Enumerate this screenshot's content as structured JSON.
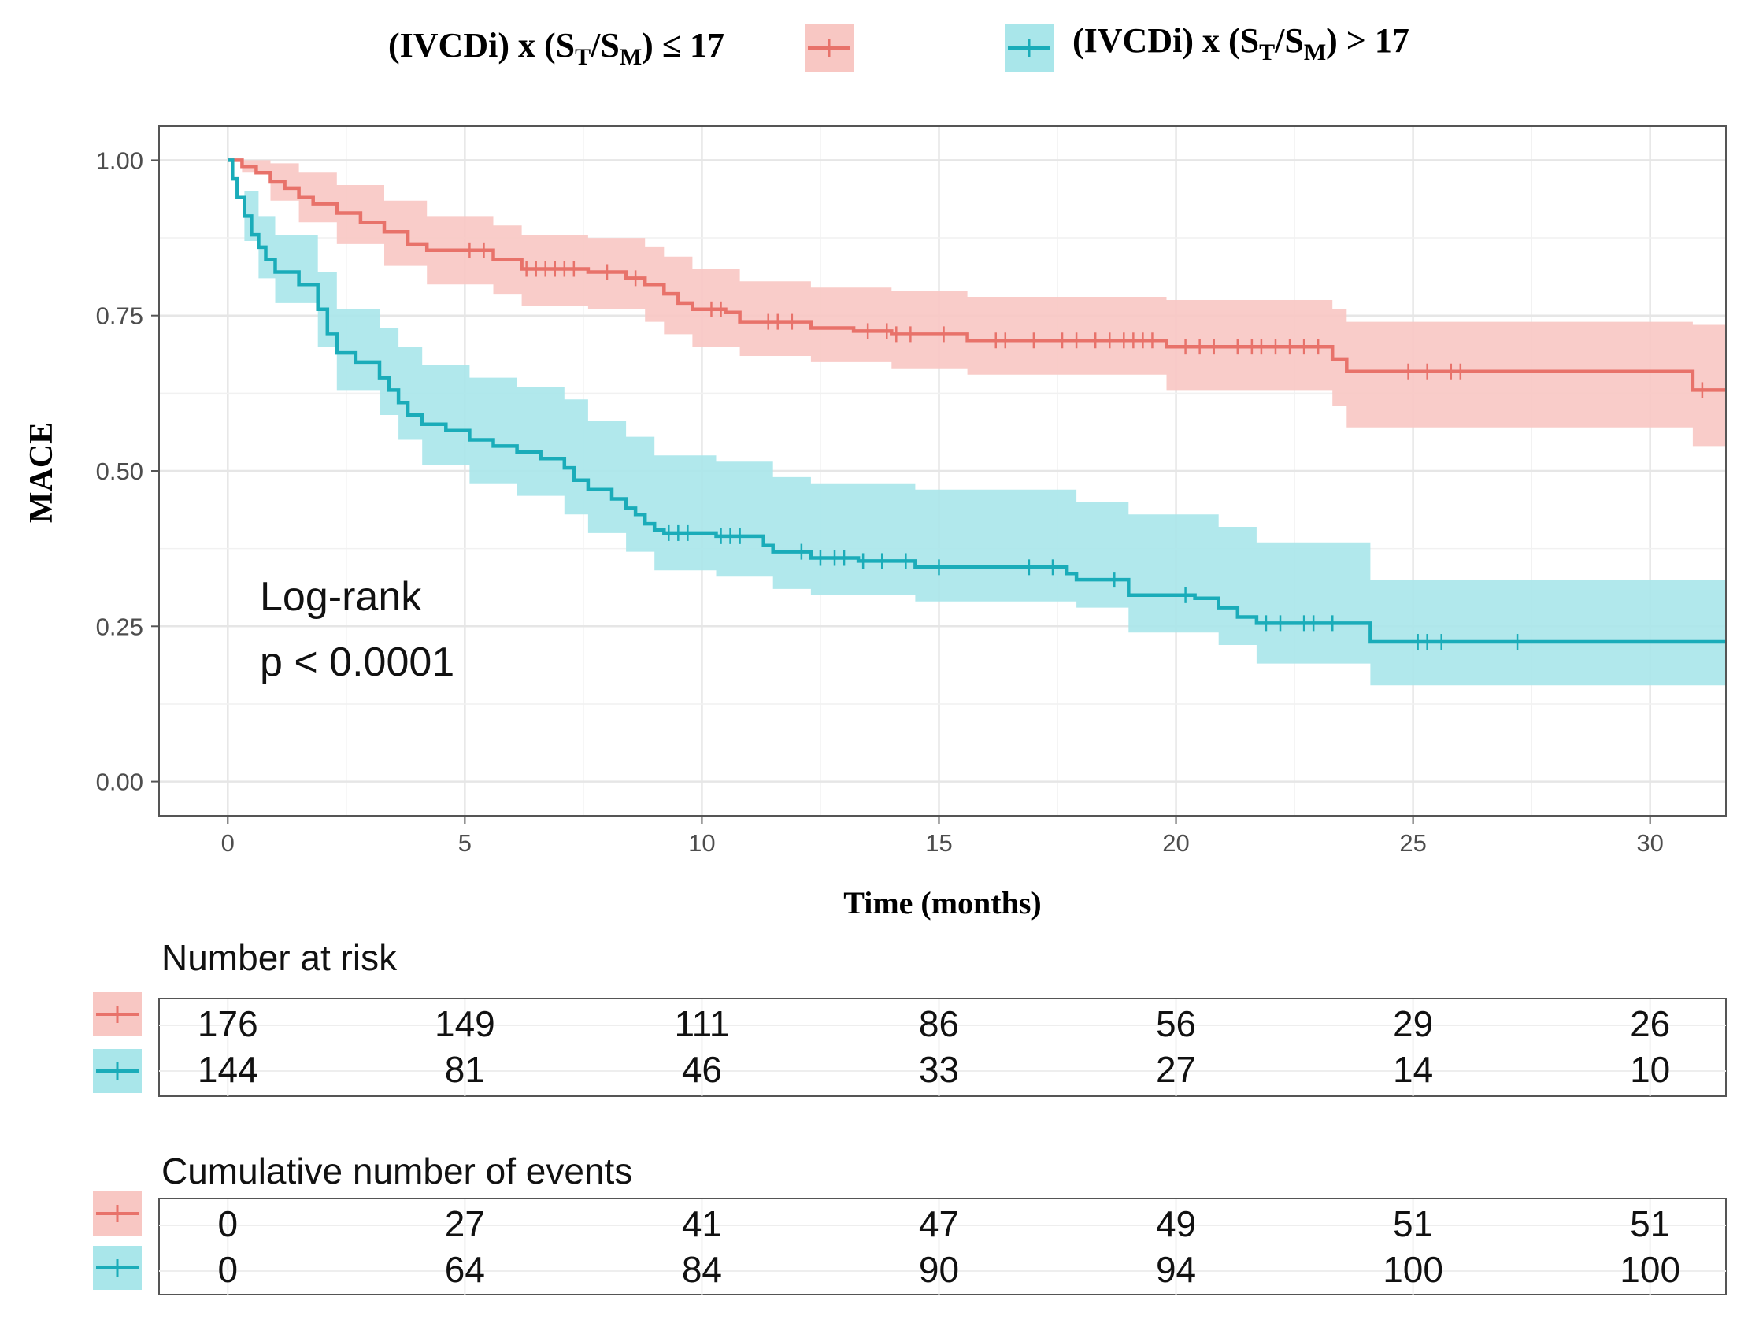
{
  "chart_data": {
    "type": "line",
    "subtype": "kaplan-meier",
    "ylabel": "MACE",
    "xlabel": "Time (months)",
    "xlim": [
      -1.45,
      31.6
    ],
    "ylim": [
      -0.055,
      1.055
    ],
    "x_ticks": [
      0,
      5,
      10,
      15,
      20,
      25,
      30
    ],
    "x_tick_labels": [
      "0",
      "5",
      "10",
      "15",
      "20",
      "25",
      "30"
    ],
    "y_ticks": [
      0,
      0.25,
      0.5,
      0.75,
      1
    ],
    "y_tick_labels": [
      "0.00",
      "0.25",
      "0.50",
      "0.75",
      "1.00"
    ],
    "grid": true,
    "legend_position": "top",
    "annotation": {
      "line1": "Log-rank",
      "line2": "p < 0.0001"
    },
    "series": [
      {
        "name": "(IVCDi) x (ST/SM) ≤ 17",
        "legend_parts": {
          "prefix": "(IVCDi) x (S",
          "sub1": "T",
          "mid": "/S",
          "sub2": "M",
          "suffix": ") ≤ 17"
        },
        "color": "#E8726A",
        "band_color": "#F8C7C3",
        "steps": [
          [
            0,
            1.0
          ],
          [
            0.3,
            0.99
          ],
          [
            0.6,
            0.98
          ],
          [
            0.9,
            0.965
          ],
          [
            1.2,
            0.955
          ],
          [
            1.5,
            0.94
          ],
          [
            1.8,
            0.93
          ],
          [
            2.3,
            0.915
          ],
          [
            2.8,
            0.9
          ],
          [
            3.3,
            0.885
          ],
          [
            3.8,
            0.865
          ],
          [
            4.2,
            0.855
          ],
          [
            5.6,
            0.84
          ],
          [
            6.2,
            0.825
          ],
          [
            7.6,
            0.82
          ],
          [
            8.4,
            0.81
          ],
          [
            8.8,
            0.8
          ],
          [
            9.2,
            0.785
          ],
          [
            9.5,
            0.77
          ],
          [
            9.8,
            0.76
          ],
          [
            10.5,
            0.755
          ],
          [
            10.8,
            0.74
          ],
          [
            12.3,
            0.73
          ],
          [
            13.2,
            0.725
          ],
          [
            14.0,
            0.72
          ],
          [
            15.6,
            0.71
          ],
          [
            19.8,
            0.7
          ],
          [
            23.3,
            0.68
          ],
          [
            23.6,
            0.66
          ],
          [
            30.9,
            0.63
          ]
        ],
        "upper_steps": [
          [
            0,
            1.0
          ],
          [
            0.3,
            1.0
          ],
          [
            0.9,
            0.995
          ],
          [
            1.5,
            0.98
          ],
          [
            2.3,
            0.96
          ],
          [
            3.3,
            0.935
          ],
          [
            4.2,
            0.91
          ],
          [
            5.6,
            0.895
          ],
          [
            6.2,
            0.88
          ],
          [
            7.6,
            0.875
          ],
          [
            8.8,
            0.86
          ],
          [
            9.2,
            0.845
          ],
          [
            9.8,
            0.825
          ],
          [
            10.8,
            0.805
          ],
          [
            12.3,
            0.795
          ],
          [
            14.0,
            0.79
          ],
          [
            15.6,
            0.78
          ],
          [
            19.8,
            0.775
          ],
          [
            23.3,
            0.76
          ],
          [
            23.6,
            0.74
          ],
          [
            30.9,
            0.735
          ]
        ],
        "lower_steps": [
          [
            0,
            1.0
          ],
          [
            0.3,
            0.98
          ],
          [
            0.9,
            0.935
          ],
          [
            1.5,
            0.9
          ],
          [
            2.3,
            0.865
          ],
          [
            3.3,
            0.83
          ],
          [
            4.2,
            0.8
          ],
          [
            5.6,
            0.785
          ],
          [
            6.2,
            0.765
          ],
          [
            7.6,
            0.76
          ],
          [
            8.8,
            0.74
          ],
          [
            9.2,
            0.72
          ],
          [
            9.8,
            0.7
          ],
          [
            10.8,
            0.685
          ],
          [
            12.3,
            0.675
          ],
          [
            14.0,
            0.665
          ],
          [
            15.6,
            0.655
          ],
          [
            19.8,
            0.63
          ],
          [
            23.3,
            0.605
          ],
          [
            23.6,
            0.57
          ],
          [
            30.9,
            0.54
          ]
        ],
        "censored": [
          5.1,
          5.4,
          6.3,
          6.5,
          6.7,
          6.9,
          7.1,
          7.3,
          8.0,
          8.6,
          10.2,
          10.4,
          11.4,
          11.6,
          11.9,
          13.5,
          13.9,
          14.1,
          14.4,
          15.1,
          16.2,
          16.4,
          17.0,
          17.6,
          17.9,
          18.3,
          18.6,
          18.9,
          19.1,
          19.3,
          19.5,
          20.2,
          20.5,
          20.8,
          21.3,
          21.6,
          21.8,
          22.1,
          22.4,
          22.7,
          23.0,
          24.9,
          25.3,
          25.8,
          26.0,
          31.1
        ]
      },
      {
        "name": "(IVCDi) x (ST/SM) > 17",
        "legend_parts": {
          "prefix": "(IVCDi) x (S",
          "sub1": "T",
          "mid": "/S",
          "sub2": "M",
          "suffix": ") > 17"
        },
        "color": "#1AACB9",
        "band_color": "#A9E6EA",
        "steps": [
          [
            0,
            1.0
          ],
          [
            0.1,
            0.97
          ],
          [
            0.2,
            0.94
          ],
          [
            0.35,
            0.91
          ],
          [
            0.5,
            0.88
          ],
          [
            0.65,
            0.86
          ],
          [
            0.8,
            0.84
          ],
          [
            1.0,
            0.82
          ],
          [
            1.5,
            0.8
          ],
          [
            1.9,
            0.76
          ],
          [
            2.1,
            0.72
          ],
          [
            2.3,
            0.69
          ],
          [
            2.7,
            0.675
          ],
          [
            3.2,
            0.65
          ],
          [
            3.4,
            0.63
          ],
          [
            3.6,
            0.61
          ],
          [
            3.8,
            0.59
          ],
          [
            4.1,
            0.575
          ],
          [
            4.6,
            0.565
          ],
          [
            5.1,
            0.55
          ],
          [
            5.6,
            0.54
          ],
          [
            6.1,
            0.53
          ],
          [
            6.6,
            0.52
          ],
          [
            7.1,
            0.505
          ],
          [
            7.3,
            0.485
          ],
          [
            7.6,
            0.47
          ],
          [
            8.1,
            0.455
          ],
          [
            8.4,
            0.44
          ],
          [
            8.6,
            0.43
          ],
          [
            8.8,
            0.415
          ],
          [
            9.0,
            0.405
          ],
          [
            9.2,
            0.4
          ],
          [
            10.3,
            0.395
          ],
          [
            11.3,
            0.38
          ],
          [
            11.5,
            0.37
          ],
          [
            12.3,
            0.36
          ],
          [
            13.3,
            0.355
          ],
          [
            14.5,
            0.345
          ],
          [
            17.7,
            0.335
          ],
          [
            17.9,
            0.325
          ],
          [
            19.0,
            0.3
          ],
          [
            20.4,
            0.295
          ],
          [
            20.9,
            0.28
          ],
          [
            21.3,
            0.265
          ],
          [
            21.7,
            0.255
          ],
          [
            24.1,
            0.225
          ]
        ],
        "upper_steps": [
          [
            0,
            1.0
          ],
          [
            0.35,
            0.95
          ],
          [
            0.65,
            0.91
          ],
          [
            1.0,
            0.88
          ],
          [
            1.9,
            0.82
          ],
          [
            2.3,
            0.76
          ],
          [
            3.2,
            0.73
          ],
          [
            3.6,
            0.7
          ],
          [
            4.1,
            0.67
          ],
          [
            5.1,
            0.65
          ],
          [
            6.1,
            0.635
          ],
          [
            7.1,
            0.615
          ],
          [
            7.6,
            0.58
          ],
          [
            8.4,
            0.555
          ],
          [
            9.0,
            0.525
          ],
          [
            10.3,
            0.515
          ],
          [
            11.5,
            0.49
          ],
          [
            12.3,
            0.48
          ],
          [
            14.5,
            0.47
          ],
          [
            17.9,
            0.45
          ],
          [
            19.0,
            0.43
          ],
          [
            20.9,
            0.41
          ],
          [
            21.7,
            0.385
          ],
          [
            24.1,
            0.325
          ]
        ],
        "lower_steps": [
          [
            0,
            1.0
          ],
          [
            0.35,
            0.87
          ],
          [
            0.65,
            0.81
          ],
          [
            1.0,
            0.77
          ],
          [
            1.9,
            0.7
          ],
          [
            2.3,
            0.63
          ],
          [
            3.2,
            0.59
          ],
          [
            3.6,
            0.55
          ],
          [
            4.1,
            0.51
          ],
          [
            5.1,
            0.48
          ],
          [
            6.1,
            0.46
          ],
          [
            7.1,
            0.43
          ],
          [
            7.6,
            0.4
          ],
          [
            8.4,
            0.37
          ],
          [
            9.0,
            0.34
          ],
          [
            10.3,
            0.33
          ],
          [
            11.5,
            0.31
          ],
          [
            12.3,
            0.3
          ],
          [
            14.5,
            0.29
          ],
          [
            17.9,
            0.28
          ],
          [
            19.0,
            0.24
          ],
          [
            20.9,
            0.22
          ],
          [
            21.7,
            0.19
          ],
          [
            24.1,
            0.155
          ]
        ],
        "censored": [
          9.3,
          9.5,
          9.7,
          10.4,
          10.6,
          10.8,
          12.1,
          12.5,
          12.8,
          13.0,
          13.4,
          13.8,
          14.3,
          15.0,
          16.9,
          17.4,
          18.7,
          20.2,
          21.9,
          22.2,
          22.7,
          22.9,
          23.3,
          25.1,
          25.3,
          25.6,
          27.2
        ]
      }
    ]
  },
  "risk_table": {
    "title": "Number at risk",
    "times": [
      0,
      5,
      10,
      15,
      20,
      25,
      30
    ],
    "rows": [
      {
        "values": [
          "176",
          "149",
          "111",
          "86",
          "56",
          "29",
          "26"
        ]
      },
      {
        "values": [
          "144",
          "81",
          "46",
          "33",
          "27",
          "14",
          "10"
        ]
      }
    ]
  },
  "events_table": {
    "title": "Cumulative number of events",
    "times": [
      0,
      5,
      10,
      15,
      20,
      25,
      30
    ],
    "rows": [
      {
        "values": [
          "0",
          "27",
          "41",
          "47",
          "49",
          "51",
          "51"
        ]
      },
      {
        "values": [
          "0",
          "64",
          "84",
          "90",
          "94",
          "100",
          "100"
        ]
      }
    ]
  }
}
